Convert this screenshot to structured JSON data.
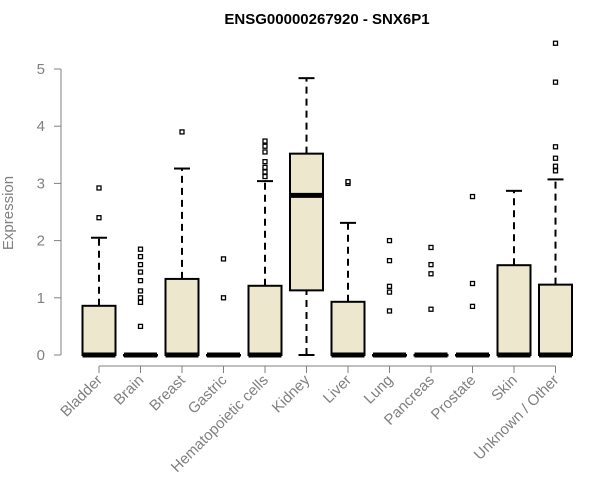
{
  "chart_data": {
    "type": "box",
    "title": "ENSG00000267920 - SNX6P1",
    "xlabel": "",
    "ylabel": "Expression",
    "ylim": [
      0,
      5.5
    ],
    "yticks": [
      0,
      1,
      2,
      3,
      4,
      5
    ],
    "categories": [
      "Bladder",
      "Brain",
      "Breast",
      "Gastric",
      "Hematopoietic cells",
      "Kidney",
      "Liver",
      "Lung",
      "Pancreas",
      "Prostate",
      "Skin",
      "Unknown / Other"
    ],
    "boxes": [
      {
        "q1": 0,
        "median": 0,
        "q3": 0.86,
        "whisker_low": 0,
        "whisker_high": 2.05,
        "outliers": [
          2.4,
          2.92
        ]
      },
      {
        "q1": 0,
        "median": 0,
        "q3": 0,
        "whisker_low": 0,
        "whisker_high": 0,
        "outliers": [
          0.5,
          0.92,
          1.0,
          1.12,
          1.3,
          1.45,
          1.58,
          1.72,
          1.85
        ]
      },
      {
        "q1": 0,
        "median": 0,
        "q3": 1.33,
        "whisker_low": 0,
        "whisker_high": 3.26,
        "outliers": [
          3.9
        ]
      },
      {
        "q1": 0,
        "median": 0,
        "q3": 0,
        "whisker_low": 0,
        "whisker_high": 0,
        "outliers": [
          1.0,
          1.68
        ]
      },
      {
        "q1": 0,
        "median": 0,
        "q3": 1.21,
        "whisker_low": 0,
        "whisker_high": 3.04,
        "outliers": [
          3.12,
          3.2,
          3.28,
          3.38,
          3.55,
          3.65,
          3.74
        ]
      },
      {
        "q1": 1.13,
        "median": 2.79,
        "q3": 3.52,
        "whisker_low": 0,
        "whisker_high": 4.84,
        "outliers": []
      },
      {
        "q1": 0,
        "median": 0,
        "q3": 0.93,
        "whisker_low": 0,
        "whisker_high": 2.31,
        "outliers": [
          3.0,
          3.03
        ]
      },
      {
        "q1": 0,
        "median": 0,
        "q3": 0,
        "whisker_low": 0,
        "whisker_high": 0,
        "outliers": [
          0.77,
          1.1,
          1.2,
          1.65,
          2.0
        ]
      },
      {
        "q1": 0,
        "median": 0,
        "q3": 0,
        "whisker_low": 0,
        "whisker_high": 0,
        "outliers": [
          0.8,
          1.42,
          1.58,
          1.88
        ]
      },
      {
        "q1": 0,
        "median": 0,
        "q3": 0,
        "whisker_low": 0,
        "whisker_high": 0,
        "outliers": [
          0.85,
          1.25,
          2.77
        ]
      },
      {
        "q1": 0,
        "median": 0,
        "q3": 1.57,
        "whisker_low": 0,
        "whisker_high": 2.87,
        "outliers": []
      },
      {
        "q1": 0,
        "median": 0,
        "q3": 1.23,
        "whisker_low": 0,
        "whisker_high": 3.07,
        "outliers": [
          3.22,
          3.3,
          3.44,
          3.64,
          4.77,
          5.45
        ]
      }
    ],
    "colors": {
      "box_fill": "#EDE7CE",
      "stroke": "#000000",
      "axis": "#808080",
      "title": "#000000"
    },
    "grid": false,
    "legend": "none"
  }
}
